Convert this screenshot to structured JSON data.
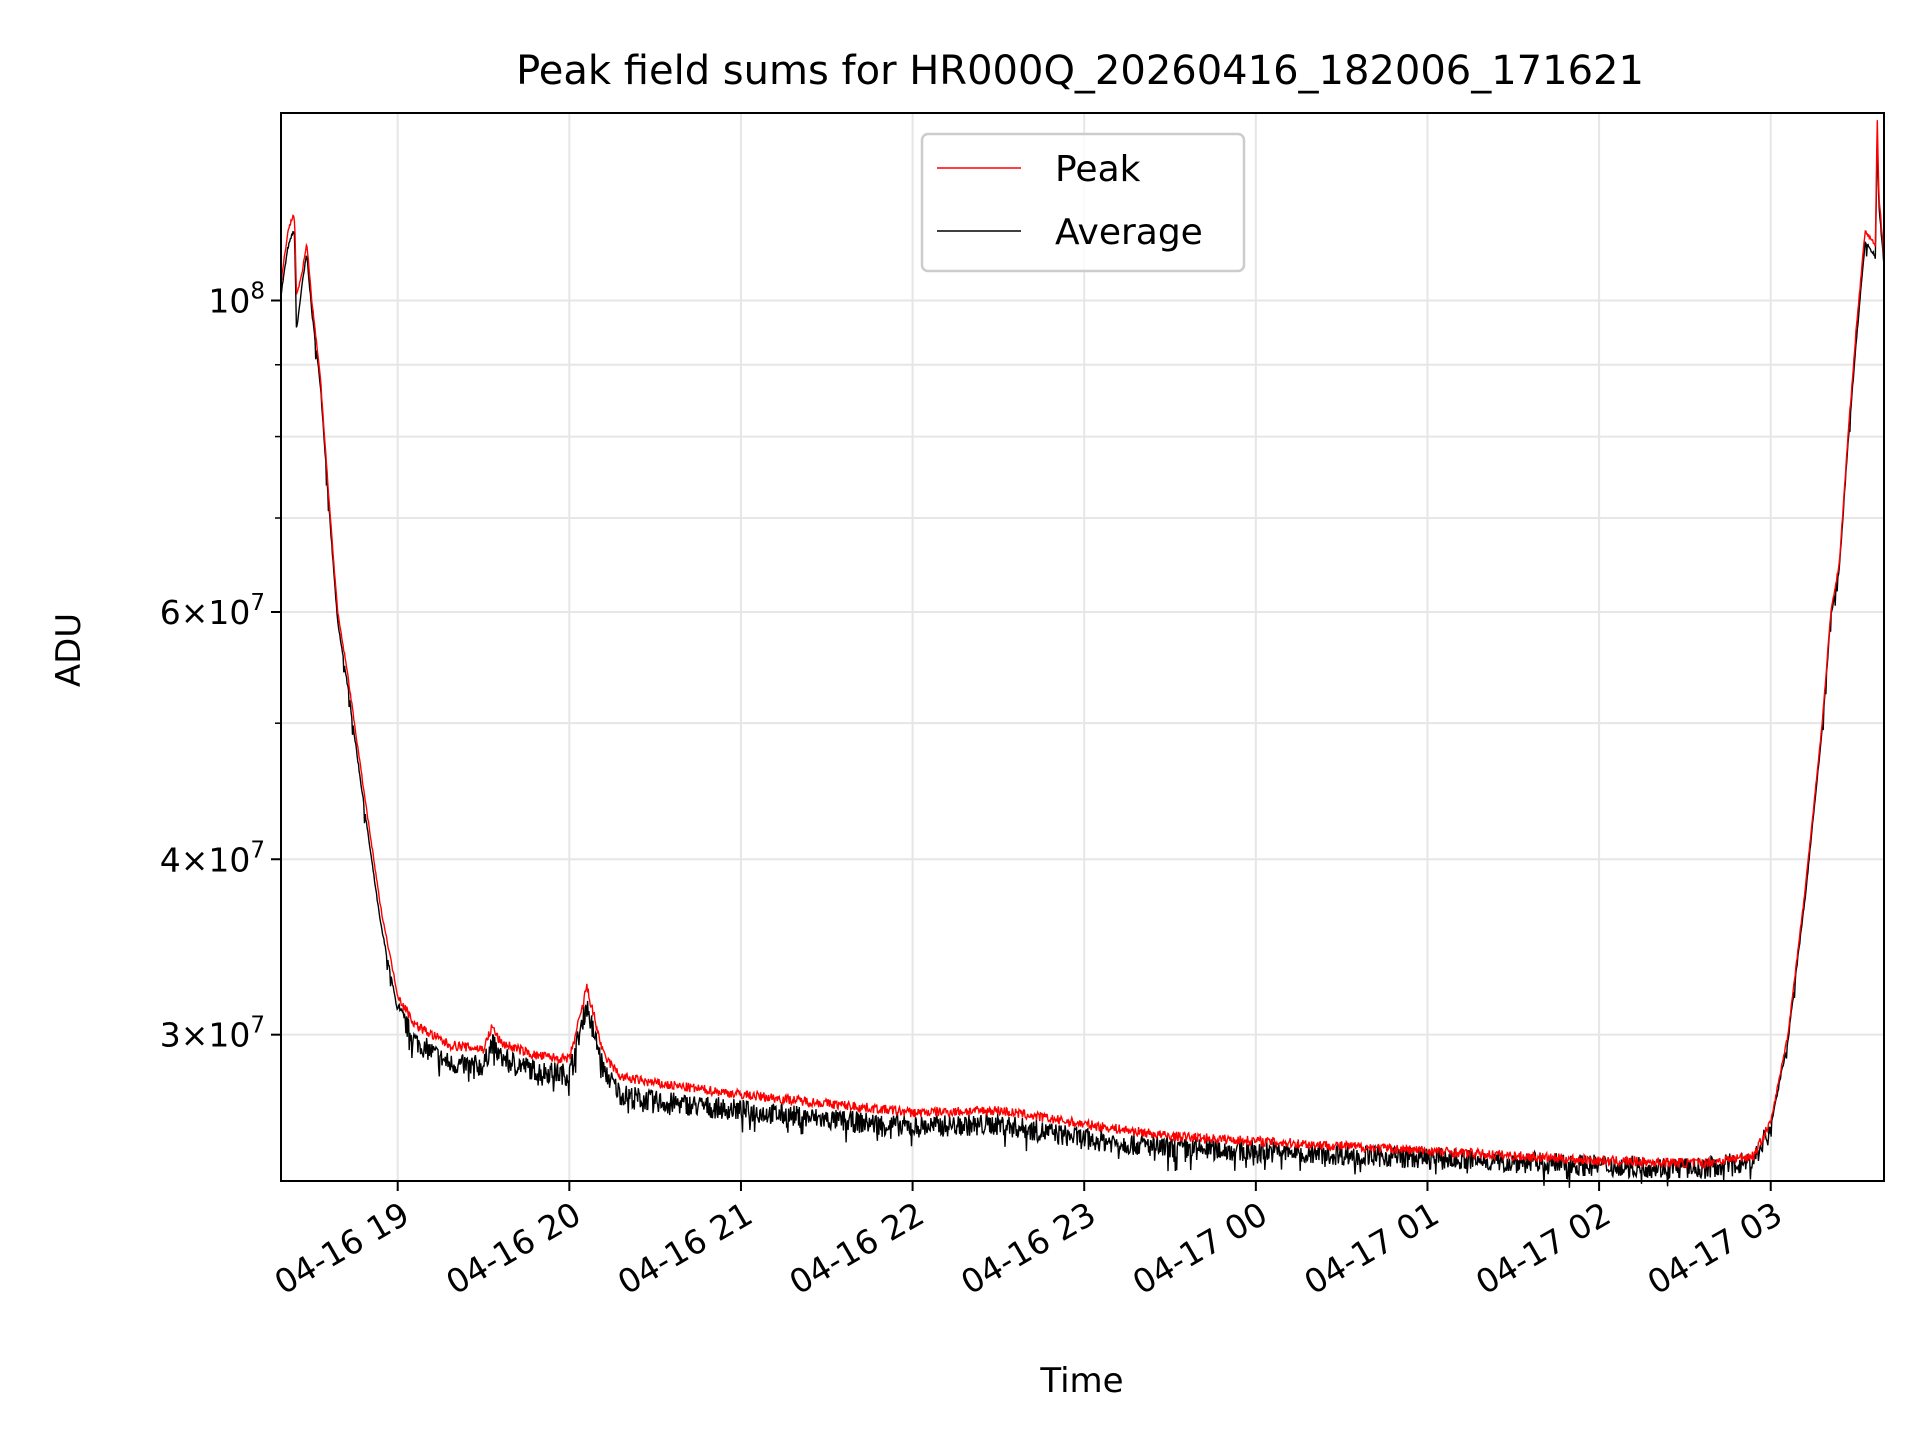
{
  "chart_data": {
    "type": "line",
    "title": "Peak field sums for HR000Q_20260416_182006_171621",
    "xlabel": "Time",
    "ylabel": "ADU",
    "yscale": "log",
    "ylim": [
      23600000,
      136000000
    ],
    "xlim_hours": [
      18.32,
      27.66
    ],
    "grid": true,
    "legend_position": "upper-center",
    "x_ticks": [
      {
        "hour": 19,
        "label": "04-16 19"
      },
      {
        "hour": 20,
        "label": "04-16 20"
      },
      {
        "hour": 21,
        "label": "04-16 21"
      },
      {
        "hour": 22,
        "label": "04-16 22"
      },
      {
        "hour": 23,
        "label": "04-16 23"
      },
      {
        "hour": 24,
        "label": "04-17 00"
      },
      {
        "hour": 25,
        "label": "04-17 01"
      },
      {
        "hour": 26,
        "label": "04-17 02"
      },
      {
        "hour": 27,
        "label": "04-17 03"
      }
    ],
    "y_ticks": [
      {
        "value": 100000000,
        "mant": "",
        "base": "10",
        "exp": "8"
      },
      {
        "value": 60000000,
        "mant": "6",
        "base": "10",
        "exp": "7"
      },
      {
        "value": 40000000,
        "mant": "4",
        "base": "10",
        "exp": "7"
      },
      {
        "value": 30000000,
        "mant": "3",
        "base": "10",
        "exp": "7"
      }
    ],
    "y_minor": [
      50000000,
      70000000,
      80000000,
      90000000
    ],
    "x_unit": "hours since 2026-04-16 00:00",
    "series": [
      {
        "name": "Peak",
        "color": "#ff0000",
        "x": [
          18.32,
          18.36,
          18.39,
          18.4,
          18.41,
          18.44,
          18.47,
          18.5,
          18.55,
          18.6,
          18.65,
          18.7,
          18.71,
          18.8,
          18.9,
          19.0,
          19.1,
          19.3,
          19.5,
          19.55,
          19.6,
          19.8,
          20.0,
          20.08,
          20.1,
          20.2,
          20.3,
          20.5,
          21.0,
          21.5,
          22.0,
          22.5,
          23.0,
          23.5,
          24.0,
          25.0,
          26.0,
          26.6,
          26.9,
          27.0,
          27.1,
          27.2,
          27.3,
          27.35,
          27.4,
          27.45,
          27.5,
          27.55,
          27.6,
          27.61,
          27.62,
          27.63,
          27.66
        ],
        "values": [
          103000000.0,
          112000000.0,
          115000000.0,
          114000000.0,
          101000000.0,
          104000000.0,
          110000000.0,
          100000000.0,
          88000000.0,
          72000000.0,
          60000000.0,
          55000000.0,
          54000000.0,
          45000000.0,
          37000000.0,
          32000000.0,
          30500000.0,
          29500000.0,
          29300000.0,
          30400000.0,
          29600000.0,
          29000000.0,
          28800000.0,
          31500000.0,
          32500000.0,
          29000000.0,
          28000000.0,
          27700000.0,
          27200000.0,
          26800000.0,
          26400000.0,
          26500000.0,
          25900000.0,
          25400000.0,
          25200000.0,
          24800000.0,
          24400000.0,
          24300000.0,
          24600000.0,
          26000000.0,
          30000000.0,
          38000000.0,
          50000000.0,
          60000000.0,
          65000000.0,
          80000000.0,
          96000000.0,
          112000000.0,
          110000000.0,
          109000000.0,
          136000000.0,
          119000000.0,
          107000000.0
        ]
      },
      {
        "name": "Average",
        "color": "#000000",
        "x": [
          18.32,
          18.36,
          18.39,
          18.4,
          18.41,
          18.44,
          18.47,
          18.5,
          18.55,
          18.6,
          18.65,
          18.7,
          18.71,
          18.8,
          18.9,
          19.0,
          19.1,
          19.3,
          19.5,
          19.55,
          19.6,
          19.8,
          20.0,
          20.08,
          20.1,
          20.2,
          20.3,
          20.5,
          21.0,
          21.5,
          22.0,
          22.5,
          23.0,
          23.5,
          24.0,
          25.0,
          26.0,
          26.6,
          26.9,
          27.0,
          27.1,
          27.2,
          27.3,
          27.35,
          27.4,
          27.45,
          27.5,
          27.55,
          27.6,
          27.61,
          27.62,
          27.63,
          27.66
        ],
        "values": [
          101000000.0,
          109000000.0,
          112000000.0,
          111000000.0,
          95000000.0,
          102000000.0,
          108000000.0,
          98000000.0,
          87000000.0,
          71000000.0,
          59000000.0,
          54000000.0,
          53000000.0,
          44000000.0,
          36000000.0,
          31200000.0,
          29700000.0,
          28600000.0,
          28500000.0,
          29600000.0,
          28900000.0,
          28300000.0,
          28100000.0,
          30800000.0,
          31500000.0,
          28300000.0,
          27200000.0,
          26900000.0,
          26500000.0,
          26100000.0,
          25800000.0,
          25900000.0,
          25300000.0,
          24900000.0,
          24800000.0,
          24500000.0,
          24200000.0,
          24100000.0,
          24400000.0,
          25800000.0,
          29700000.0,
          37500000.0,
          49500000.0,
          59500000.0,
          64500000.0,
          79000000.0,
          94000000.0,
          110000000.0,
          108000000.0,
          107000000.0,
          131000000.0,
          117000000.0,
          106000000.0
        ]
      }
    ]
  }
}
